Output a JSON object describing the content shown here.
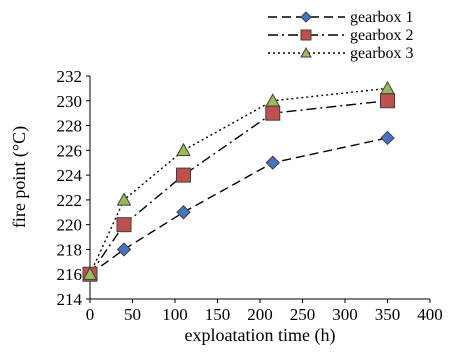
{
  "chart_data": {
    "type": "line",
    "x": [
      0,
      40,
      110,
      215,
      350
    ],
    "series": [
      {
        "name": "gearbox 1",
        "values": [
          216,
          218,
          221,
          225,
          227
        ],
        "color": "#4472C4",
        "marker": "diamond",
        "dash": "dashed"
      },
      {
        "name": "gearbox 2",
        "values": [
          216,
          220,
          224,
          229,
          230
        ],
        "color": "#C0504D",
        "marker": "square",
        "dash": "dash-dot"
      },
      {
        "name": "gearbox 3",
        "values": [
          216,
          222,
          226,
          230,
          231
        ],
        "color": "#9BBB59",
        "marker": "triangle",
        "dash": "dotted"
      }
    ],
    "xlabel": "exploatation time (h)",
    "ylabel": "fire point (°C)",
    "xlim": [
      0,
      400
    ],
    "ylim": [
      214,
      232
    ],
    "xticks": [
      0,
      50,
      100,
      150,
      200,
      250,
      300,
      350,
      400
    ],
    "yticks": [
      214,
      216,
      218,
      220,
      222,
      224,
      226,
      228,
      230,
      232
    ],
    "grid": false,
    "legend": "top-right"
  }
}
